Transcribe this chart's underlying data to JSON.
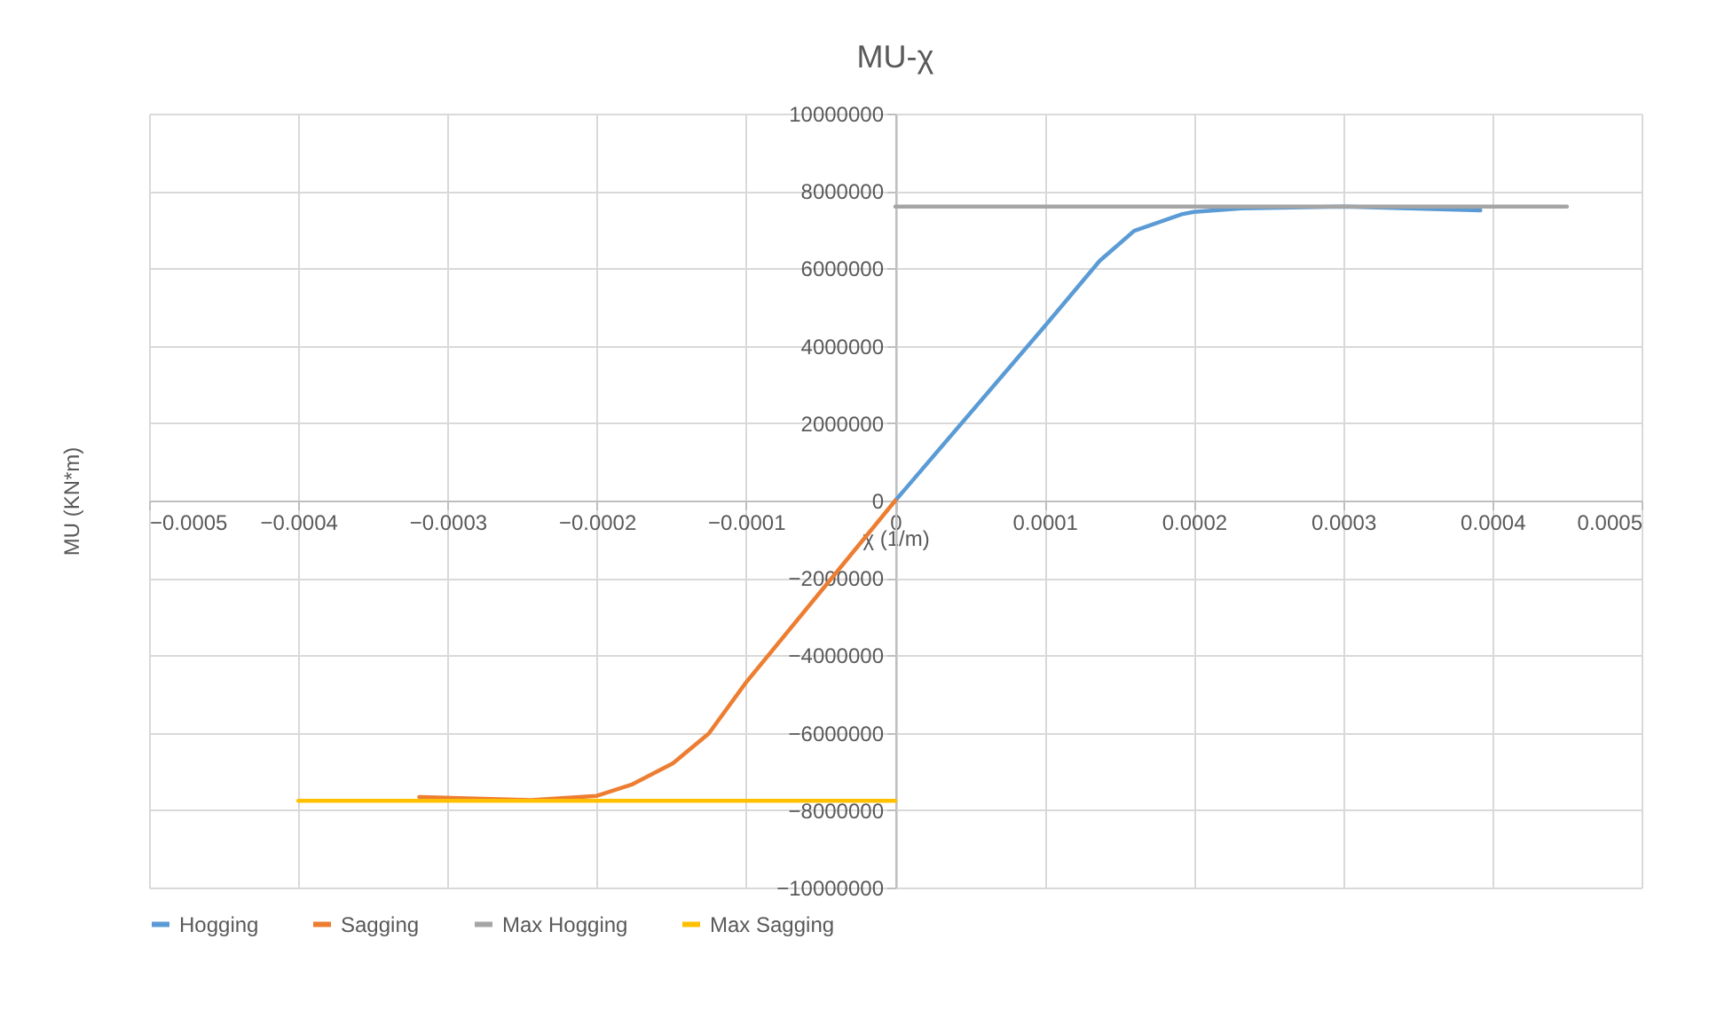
{
  "chart_data": {
    "type": "line",
    "title": "MU-χ",
    "xlabel": "χ (1/m)",
    "ylabel": "MU (KN*m)",
    "xlim": [
      -0.0005,
      0.0005
    ],
    "xticks": [
      -0.0005,
      -0.0004,
      -0.0003,
      -0.0002,
      -0.0001,
      0,
      0.0001,
      0.0002,
      0.0003,
      0.0004,
      0.0005
    ],
    "ylim": [
      -10000000,
      10000000
    ],
    "yticks": [
      -10000000,
      -8000000,
      -6000000,
      -4000000,
      -2000000,
      0,
      2000000,
      4000000,
      6000000,
      8000000,
      10000000
    ],
    "grid": true,
    "legend": "bottom",
    "marker": "none",
    "line_style": "solid",
    "series": [
      {
        "name": "Hogging",
        "color": "#5b9bd5",
        "x": [
          0,
          0.0001,
          0.000137,
          0.00016,
          0.000192,
          0.0002,
          0.000232,
          0.0003,
          0.000392
        ],
        "values": [
          0,
          4500000,
          6200000,
          6970000,
          7400000,
          7460000,
          7550000,
          7600000,
          7500000
        ]
      },
      {
        "name": "Sagging",
        "color": "#ed7d31",
        "x": [
          0,
          -0.0001,
          -0.000125,
          -0.000149,
          -0.000176,
          -0.0002,
          -0.000244,
          -0.000319
        ],
        "values": [
          0,
          -4700000,
          -6020000,
          -6790000,
          -7330000,
          -7630000,
          -7740000,
          -7660000
        ]
      },
      {
        "name": "Max Hogging",
        "color": "#a5a5a5",
        "x": [
          0,
          0.00045
        ],
        "values": [
          7600000,
          7600000
        ]
      },
      {
        "name": "Max Sagging",
        "color": "#ffc000",
        "x": [
          -0.0004,
          0
        ],
        "values": [
          -7760000,
          -7760000
        ]
      }
    ]
  }
}
